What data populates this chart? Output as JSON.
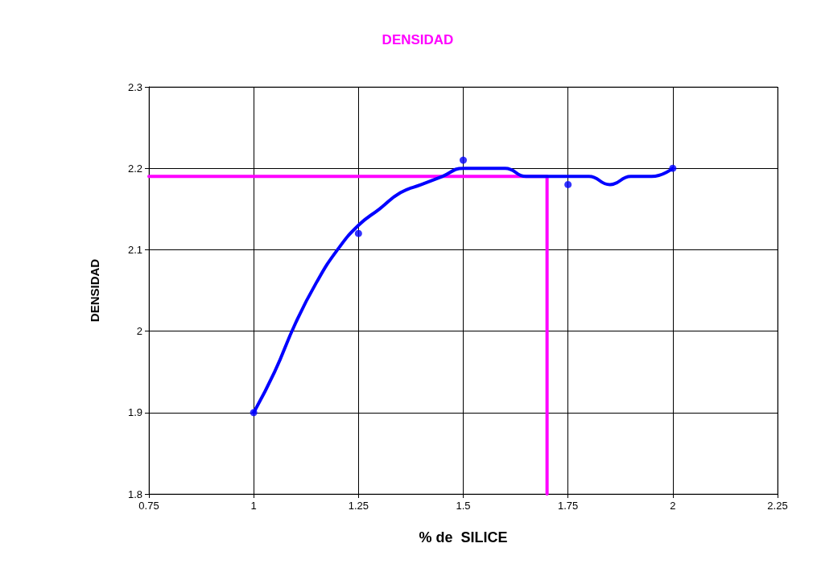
{
  "chart_data": {
    "type": "scatter",
    "title": "DENSIDAD",
    "xlabel": "% de  SILICE",
    "ylabel": "DENSIDAD",
    "xlim": [
      0.75,
      2.25
    ],
    "xticks": [
      0.75,
      1,
      1.25,
      1.5,
      1.75,
      2,
      2.25
    ],
    "ylim": [
      1.8,
      2.3
    ],
    "yticks": [
      1.8,
      1.9,
      2,
      2.1,
      2.2,
      2.3
    ],
    "grid": true,
    "series": [
      {
        "type": "line",
        "color": "#ff00ff",
        "marker": "none",
        "x": [
          0.75,
          1.7,
          1.7
        ],
        "values": [
          2.19,
          2.19,
          1.8
        ]
      },
      {
        "type": "line",
        "color": "#0000ff",
        "marker": "none",
        "x": [
          1,
          1.05,
          1.1,
          1.15,
          1.2,
          1.25,
          1.3,
          1.35,
          1.4,
          1.45,
          1.5,
          1.55,
          1.6,
          1.65,
          1.7,
          1.75,
          1.8,
          1.85,
          1.9,
          1.95,
          2
        ],
        "values": [
          1.9,
          1.95,
          2.01,
          2.06,
          2.1,
          2.13,
          2.15,
          2.17,
          2.18,
          2.19,
          2.2,
          2.2,
          2.2,
          2.19,
          2.19,
          2.19,
          2.19,
          2.18,
          2.19,
          2.19,
          2.2
        ]
      },
      {
        "color": "#0000ff",
        "marker": "circle",
        "x": [
          1,
          1.25,
          1.5,
          1.75,
          2
        ],
        "values": [
          1.9,
          2.12,
          2.21,
          2.18,
          2.2
        ]
      }
    ]
  }
}
